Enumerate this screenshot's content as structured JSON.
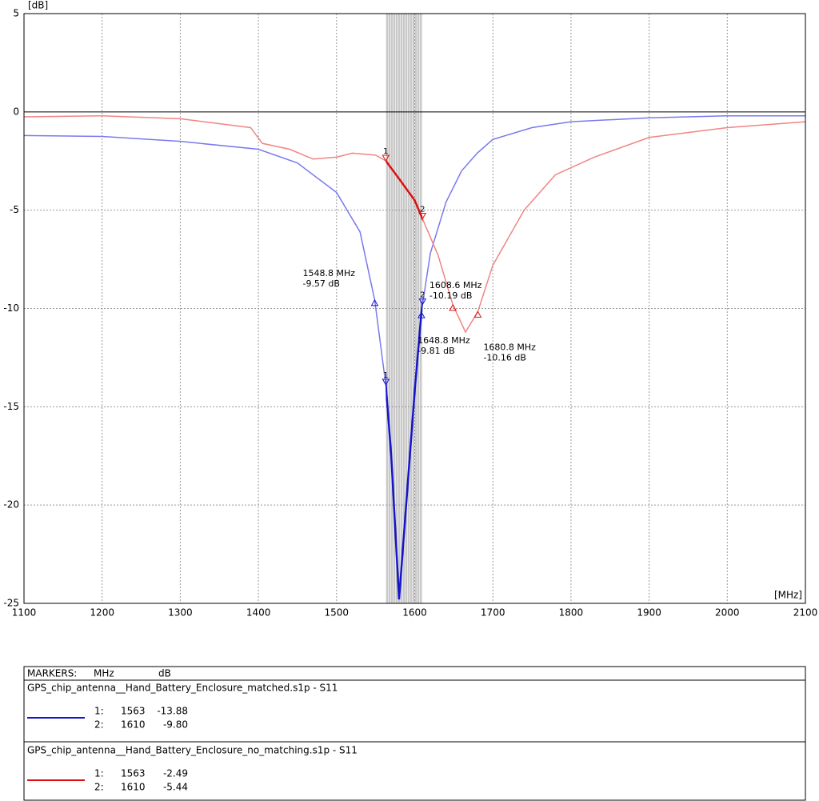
{
  "chart_data": {
    "type": "line",
    "y_axis_label": "[dB]",
    "x_axis_label": "[MHz]",
    "xlim": [
      1100,
      2100
    ],
    "ylim": [
      -25,
      5
    ],
    "xticks": [
      1100,
      1200,
      1300,
      1400,
      1500,
      1600,
      1700,
      1800,
      1900,
      2000,
      2100
    ],
    "yticks": [
      5,
      0,
      -5,
      -10,
      -15,
      -20,
      -25
    ],
    "grid": true,
    "band": [
      1563,
      1610
    ],
    "series": [
      {
        "name": "GPS_chip_antenna__Hand_Battery_Enclosure_matched.s1p - S11",
        "color": "#7a7aee",
        "highlight_color": "#1515cc",
        "x": [
          1100,
          1200,
          1300,
          1400,
          1450,
          1500,
          1530,
          1548.8,
          1563,
          1570,
          1580,
          1590,
          1600,
          1608.6,
          1610,
          1620,
          1640,
          1660,
          1680,
          1700,
          1750,
          1800,
          1900,
          2000,
          2100
        ],
        "values": [
          -1.2,
          -1.25,
          -1.5,
          -1.9,
          -2.6,
          -4.1,
          -6.1,
          -9.57,
          -13.88,
          -17.5,
          -24.8,
          -19.5,
          -14.2,
          -10.19,
          -9.8,
          -7.2,
          -4.6,
          -3.0,
          -2.1,
          -1.4,
          -0.8,
          -0.5,
          -0.3,
          -0.2,
          -0.2
        ],
        "markers": [
          {
            "label": "1",
            "key": "1:",
            "x": 1563,
            "y": -13.88
          },
          {
            "label": "2",
            "key": "2:",
            "x": 1610,
            "y": -9.8,
            "y_label": "-9.80"
          }
        ],
        "annotations": [
          {
            "x": 1548.8,
            "y": -9.57,
            "label": "1548.8 MHz",
            "sublabel": "-9.57 dB",
            "placement": "upper-left"
          },
          {
            "x": 1608.6,
            "y": -10.19,
            "label": "1608.6 MHz",
            "sublabel": "-10.19 dB",
            "placement": "upper-right"
          }
        ]
      },
      {
        "name": "GPS_chip_antenna__Hand_Battery_Enclosure_no_matching.s1p - S11",
        "color": "#f08585",
        "highlight_color": "#dd1111",
        "x": [
          1100,
          1200,
          1300,
          1390,
          1405,
          1440,
          1470,
          1500,
          1520,
          1550,
          1563,
          1580,
          1600,
          1610,
          1630,
          1648.8,
          1665,
          1680.8,
          1700,
          1740,
          1780,
          1830,
          1900,
          2000,
          2100
        ],
        "values": [
          -0.25,
          -0.2,
          -0.35,
          -0.8,
          -1.6,
          -1.9,
          -2.4,
          -2.3,
          -2.1,
          -2.2,
          -2.49,
          -3.4,
          -4.5,
          -5.44,
          -7.3,
          -9.81,
          -11.2,
          -10.16,
          -7.8,
          -5.0,
          -3.2,
          -2.3,
          -1.3,
          -0.8,
          -0.5
        ],
        "markers": [
          {
            "label": "1",
            "key": "1:",
            "x": 1563,
            "y": -2.49
          },
          {
            "label": "2",
            "key": "2:",
            "x": 1610,
            "y": -5.44
          }
        ],
        "annotations": [
          {
            "x": 1648.8,
            "y": -9.81,
            "label": "1648.8 MHz",
            "sublabel": "-9.81 dB",
            "placement": "lower-left"
          },
          {
            "x": 1680.8,
            "y": -10.16,
            "label": "1680.8 MHz",
            "sublabel": "-10.16 dB",
            "placement": "lower-right"
          }
        ]
      }
    ],
    "marker_table": {
      "title": "MARKERS:",
      "x_unit": "MHz",
      "y_unit": "dB"
    }
  }
}
